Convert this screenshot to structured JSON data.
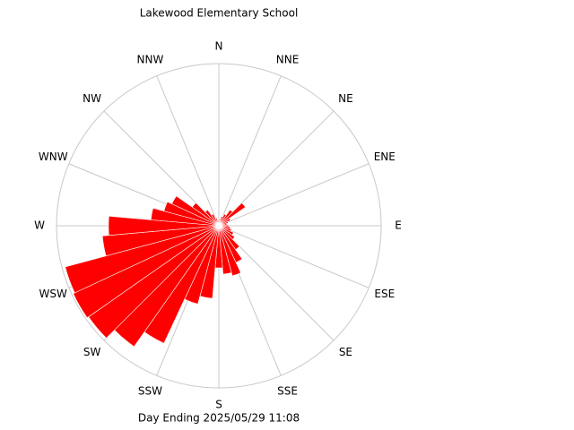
{
  "chart_data": {
    "type": "windrose",
    "title": "Lakewood Elementary School",
    "xlabel": "Day Ending 2025/05/29 11:08",
    "color": "#ff0000",
    "bin_width": 10,
    "rlim": [
      0,
      100
    ],
    "x": [
      0,
      10,
      20,
      30,
      40,
      50,
      60,
      70,
      80,
      90,
      100,
      110,
      120,
      130,
      140,
      150,
      160,
      170,
      180,
      190,
      200,
      210,
      220,
      230,
      240,
      250,
      260,
      270,
      280,
      290,
      300,
      310,
      320,
      330,
      340,
      350
    ],
    "values": [
      3,
      4,
      6,
      8,
      12,
      20,
      8,
      6,
      5,
      6,
      7,
      8,
      10,
      12,
      18,
      25,
      32,
      30,
      26,
      45,
      50,
      80,
      91,
      98,
      99,
      98,
      72,
      68,
      42,
      35,
      32,
      20,
      12,
      8,
      5,
      4
    ],
    "angle_ticks": [
      {
        "value": 0,
        "label": "N"
      },
      {
        "value": 22.5,
        "label": "NNE"
      },
      {
        "value": 45,
        "label": "NE"
      },
      {
        "value": 67.5,
        "label": "ENE"
      },
      {
        "value": 90,
        "label": "E"
      },
      {
        "value": 112.5,
        "label": "ESE"
      },
      {
        "value": 135,
        "label": "SE"
      },
      {
        "value": 157.5,
        "label": "SSE"
      },
      {
        "value": 180,
        "label": "S"
      },
      {
        "value": 202.5,
        "label": "SSW"
      },
      {
        "value": 225,
        "label": "SW"
      },
      {
        "value": 247.5,
        "label": "WSW"
      },
      {
        "value": 270,
        "label": "W"
      },
      {
        "value": 292.5,
        "label": "WNW"
      },
      {
        "value": 315,
        "label": "NW"
      },
      {
        "value": 337.5,
        "label": "NNW"
      }
    ]
  }
}
